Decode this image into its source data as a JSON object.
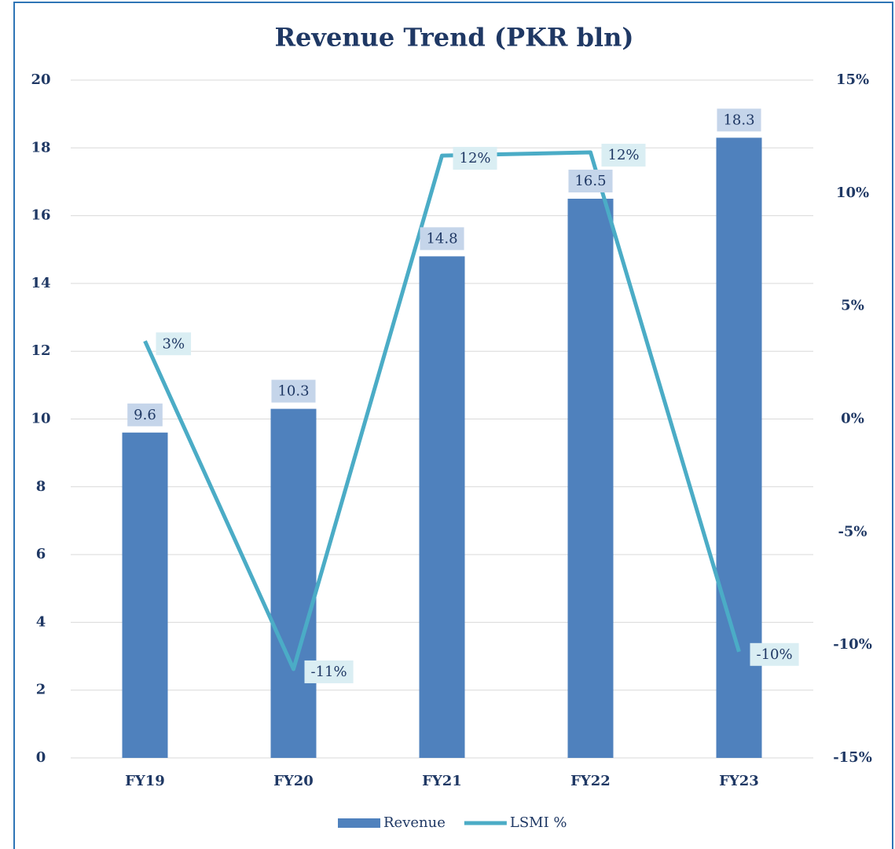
{
  "chart_data": {
    "type": "bar",
    "title": "Revenue Trend (PKR bln)",
    "categories": [
      "FY19",
      "FY20",
      "FY21",
      "FY22",
      "FY23"
    ],
    "series": [
      {
        "name": "Revenue",
        "type": "bar",
        "color": "#4f81bd",
        "values": [
          9.6,
          10.3,
          14.8,
          16.5,
          18.3
        ]
      },
      {
        "name": "LSMI %",
        "type": "line",
        "axis": "y2",
        "color": "#4bacc6",
        "values": [
          3.45,
          -11.07,
          11.66,
          11.8,
          -10.3
        ],
        "value_labels": [
          "3%",
          "-11%",
          "12%",
          "12%",
          "-10%"
        ]
      }
    ],
    "ylim": [
      0,
      20
    ],
    "yticks": [
      0,
      2,
      4,
      6,
      8,
      10,
      12,
      14,
      16,
      18,
      20
    ],
    "y2lim": [
      -15,
      15
    ],
    "y2ticks": [
      {
        "value": -15,
        "label": "-15%"
      },
      {
        "value": -10,
        "label": "-10%"
      },
      {
        "value": -5,
        "label": "-5%"
      },
      {
        "value": 0,
        "label": "0%"
      },
      {
        "value": 5,
        "label": "5%"
      },
      {
        "value": 10,
        "label": "10%"
      },
      {
        "value": 15,
        "label": "15%"
      }
    ],
    "grid": true,
    "legend": "bottom"
  }
}
